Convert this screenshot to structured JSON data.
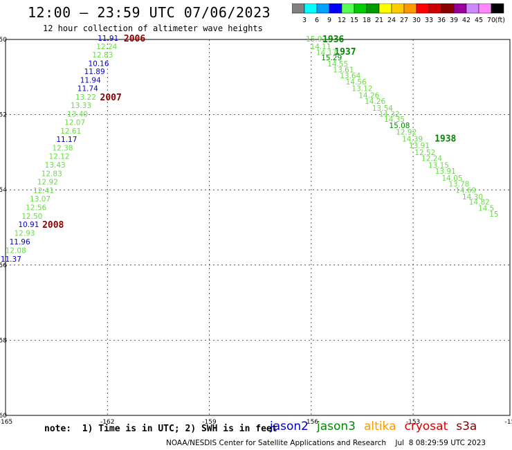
{
  "header": {
    "title": "12:00 – 23:59 UTC 07/06/2023",
    "subtitle": "12 hour collection of altimeter wave heights"
  },
  "colorbar": {
    "swatches": [
      "#808080",
      "#00ffff",
      "#00a0ff",
      "#0000ff",
      "#55ff55",
      "#00cc00",
      "#009900",
      "#ffff00",
      "#ffcc00",
      "#ff9900",
      "#ff0000",
      "#cc0000",
      "#880000",
      "#990099",
      "#cc88ff",
      "#ff88ff",
      "#000000"
    ],
    "ticks": [
      "3",
      "6",
      "9",
      "12",
      "15",
      "18",
      "21",
      "24",
      "27",
      "30",
      "33",
      "36",
      "39",
      "42",
      "45",
      "70"
    ],
    "unit": "(ft)"
  },
  "axes": {
    "x_ticks": [
      "-165",
      "-162",
      "-159",
      "-156",
      "-153",
      "-15"
    ],
    "y_ticks": [
      "-50",
      "-52",
      "-54",
      "-56",
      "-58",
      "-60"
    ]
  },
  "satellite_colors": {
    "jason2": "#0000cc",
    "jason3": "#008800",
    "jason3_light": "#66dd44",
    "altika": "#ff9900",
    "cryosat": "#dd0000",
    "s3a": "#880000"
  },
  "tracks": [
    {
      "name": "west",
      "labels": [
        {
          "text": "11.91",
          "lon": -161.98,
          "lat": -49.98,
          "c": "jason2"
        },
        {
          "text": "12.24",
          "lon": -162.02,
          "lat": -50.2,
          "c": "jason3_light"
        },
        {
          "text": "12.83",
          "lon": -162.14,
          "lat": -50.42,
          "c": "jason3_light"
        },
        {
          "text": "10.16",
          "lon": -162.26,
          "lat": -50.65,
          "c": "jason2"
        },
        {
          "text": "11.89",
          "lon": -162.38,
          "lat": -50.87,
          "c": "jason2"
        },
        {
          "text": "11.94",
          "lon": -162.5,
          "lat": -51.1,
          "c": "jason2"
        },
        {
          "text": "11.74",
          "lon": -162.58,
          "lat": -51.32,
          "c": "jason2"
        },
        {
          "text": "13.22",
          "lon": -162.64,
          "lat": -51.55,
          "c": "jason3_light"
        },
        {
          "text": "13.33",
          "lon": -162.78,
          "lat": -51.77,
          "c": "jason3_light"
        },
        {
          "text": "13.40",
          "lon": -162.88,
          "lat": -52.0,
          "c": "jason3_light"
        },
        {
          "text": "12.07",
          "lon": -162.96,
          "lat": -52.22,
          "c": "jason3_light"
        },
        {
          "text": "12.61",
          "lon": -163.08,
          "lat": -52.45,
          "c": "jason3_light"
        },
        {
          "text": "11.17",
          "lon": -163.2,
          "lat": -52.67,
          "c": "jason2"
        },
        {
          "text": "12.38",
          "lon": -163.32,
          "lat": -52.9,
          "c": "jason3_light"
        },
        {
          "text": "12.12",
          "lon": -163.42,
          "lat": -53.12,
          "c": "jason3_light"
        },
        {
          "text": "13.43",
          "lon": -163.54,
          "lat": -53.35,
          "c": "jason3_light"
        },
        {
          "text": "12.83",
          "lon": -163.64,
          "lat": -53.58,
          "c": "jason3_light"
        },
        {
          "text": "12.92",
          "lon": -163.76,
          "lat": -53.8,
          "c": "jason3_light"
        },
        {
          "text": "12.41",
          "lon": -163.88,
          "lat": -54.03,
          "c": "jason3_light"
        },
        {
          "text": "13.07",
          "lon": -163.98,
          "lat": -54.25,
          "c": "jason3_light"
        },
        {
          "text": "12.56",
          "lon": -164.1,
          "lat": -54.48,
          "c": "jason3_light"
        },
        {
          "text": "12.50",
          "lon": -164.22,
          "lat": -54.71,
          "c": "jason3_light"
        },
        {
          "text": "10.91",
          "lon": -164.32,
          "lat": -54.94,
          "c": "jason2"
        },
        {
          "text": "12.93",
          "lon": -164.44,
          "lat": -55.17,
          "c": "jason3_light"
        },
        {
          "text": "11.96",
          "lon": -164.58,
          "lat": -55.4,
          "c": "jason2"
        },
        {
          "text": "12.08",
          "lon": -164.7,
          "lat": -55.63,
          "c": "jason3_light"
        },
        {
          "text": "11.37",
          "lon": -164.84,
          "lat": -55.86,
          "c": "jason2"
        }
      ],
      "hours": [
        {
          "text": "2006",
          "lon": -161.2,
          "lat": -49.98,
          "c": "s3a"
        },
        {
          "text": "2007",
          "lon": -161.9,
          "lat": -51.55,
          "c": "s3a"
        },
        {
          "text": "2008",
          "lon": -163.6,
          "lat": -54.94,
          "c": "s3a"
        }
      ]
    },
    {
      "name": "east",
      "labels": [
        {
          "text": "15.92",
          "lon": -155.85,
          "lat": -50.0,
          "c": "jason3_light"
        },
        {
          "text": "14.11",
          "lon": -155.72,
          "lat": -50.2,
          "c": "jason3_light"
        },
        {
          "text": "14.17",
          "lon": -155.55,
          "lat": -50.36,
          "c": "jason3_light"
        },
        {
          "text": "15.29",
          "lon": -155.4,
          "lat": -50.5,
          "c": "jason3"
        },
        {
          "text": "14.55",
          "lon": -155.22,
          "lat": -50.66,
          "c": "jason3_light"
        },
        {
          "text": "13.61",
          "lon": -155.05,
          "lat": -50.82,
          "c": "jason3_light"
        },
        {
          "text": "13.64",
          "lon": -154.85,
          "lat": -50.98,
          "c": "jason3_light"
        },
        {
          "text": "14.56",
          "lon": -154.68,
          "lat": -51.14,
          "c": "jason3_light"
        },
        {
          "text": "13.12",
          "lon": -154.5,
          "lat": -51.32,
          "c": "jason3_light"
        },
        {
          "text": "14.26",
          "lon": -154.3,
          "lat": -51.5,
          "c": "jason3_light"
        },
        {
          "text": "14.26",
          "lon": -154.12,
          "lat": -51.66,
          "c": "jason3_light"
        },
        {
          "text": "13.54",
          "lon": -153.9,
          "lat": -51.84,
          "c": "jason3_light"
        },
        {
          "text": "14.32",
          "lon": -153.7,
          "lat": -52.0,
          "c": "jason3_light"
        },
        {
          "text": "14.35",
          "lon": -153.55,
          "lat": -52.14,
          "c": "jason3_light"
        },
        {
          "text": "15.08",
          "lon": -153.4,
          "lat": -52.3,
          "c": "jason3"
        },
        {
          "text": "12.92",
          "lon": -153.2,
          "lat": -52.48,
          "c": "jason3_light"
        },
        {
          "text": "14.39",
          "lon": -153.02,
          "lat": -52.66,
          "c": "jason3_light"
        },
        {
          "text": "13.91",
          "lon": -152.82,
          "lat": -52.84,
          "c": "jason3_light"
        },
        {
          "text": "12.52",
          "lon": -152.65,
          "lat": -53.02,
          "c": "jason3_light"
        },
        {
          "text": "12.24",
          "lon": -152.45,
          "lat": -53.18,
          "c": "jason3_light"
        },
        {
          "text": "13.15",
          "lon": -152.25,
          "lat": -53.36,
          "c": "jason3_light"
        },
        {
          "text": "13.91",
          "lon": -152.05,
          "lat": -53.52,
          "c": "jason3_light"
        },
        {
          "text": "14.05",
          "lon": -151.85,
          "lat": -53.7,
          "c": "jason3_light"
        },
        {
          "text": "13.78",
          "lon": -151.65,
          "lat": -53.86,
          "c": "jason3_light"
        },
        {
          "text": "14.69",
          "lon": -151.45,
          "lat": -54.02,
          "c": "jason3_light"
        },
        {
          "text": "14.30",
          "lon": -151.25,
          "lat": -54.2,
          "c": "jason3_light"
        },
        {
          "text": "14.82",
          "lon": -151.05,
          "lat": -54.34,
          "c": "jason3_light"
        },
        {
          "text": "14.5",
          "lon": -150.85,
          "lat": -54.5,
          "c": "jason3_light"
        },
        {
          "text": "15",
          "lon": -150.62,
          "lat": -54.66,
          "c": "jason3_light"
        }
      ],
      "hours": [
        {
          "text": "1936",
          "lon": -155.35,
          "lat": -50.0,
          "c": "jason3"
        },
        {
          "text": "1937",
          "lon": -155.0,
          "lat": -50.33,
          "c": "jason3"
        },
        {
          "text": "1938",
          "lon": -152.05,
          "lat": -52.64,
          "c": "jason3"
        }
      ]
    }
  ],
  "note": "note:  1) Time is in UTC; 2) SWH is in feet",
  "missions": [
    {
      "label": "jason2",
      "c": "jason2"
    },
    {
      "label": "jason3",
      "c": "jason3"
    },
    {
      "label": "altika",
      "c": "altika"
    },
    {
      "label": "cryosat",
      "c": "cryosat"
    },
    {
      "label": "s3a",
      "c": "s3a"
    }
  ],
  "footer": "NOAA/NESDIS Center for Satellite Applications and Research    Jul  8 08:29:59 UTC 2023"
}
